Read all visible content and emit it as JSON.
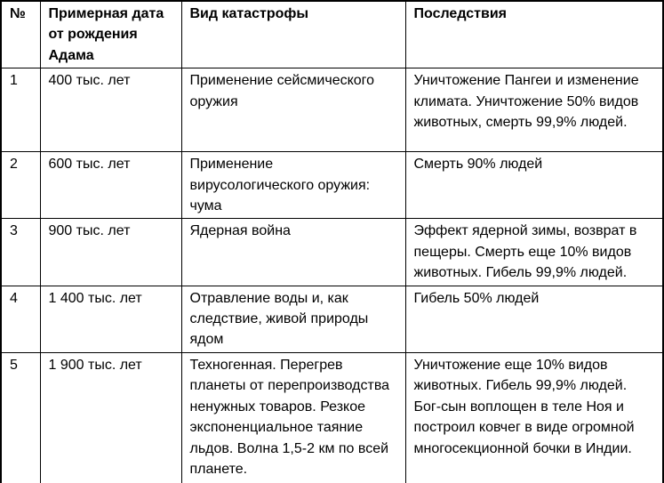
{
  "colors": {
    "border": "#000000",
    "text": "#000000",
    "background": "#ffffff"
  },
  "table": {
    "columns": [
      "№",
      "Примерная дата от рождения Адама",
      "Вид катастрофы",
      "Последствия"
    ],
    "rows": [
      {
        "num": "1",
        "date": "400 тыс. лет",
        "catastrophe": "Применение сейсмического оружия",
        "consequences": "Уничтожение Пангеи и изменение климата. Уничтожение 50% видов животных, смерть 99,9% людей."
      },
      {
        "num": "2",
        "date": "600 тыс. лет",
        "catastrophe": "Применение вирусологического оружия: чума",
        "consequences": "Смерть 90% людей"
      },
      {
        "num": "3",
        "date": "900 тыс. лет",
        "catastrophe": "Ядерная война",
        "consequences": "Эффект ядерной зимы, возврат в пещеры. Смерть еще 10% видов животных. Гибель 99,9% людей."
      },
      {
        "num": "4",
        "date": "1 400 тыс. лет",
        "catastrophe": "Отравление воды и, как следствие, живой природы ядом",
        "consequences": "Гибель 50% людей"
      },
      {
        "num": "5",
        "date": "1 900 тыс. лет",
        "catastrophe": "Техногенная. Перегрев планеты от перепроизводства ненужных товаров. Резкое экспоненциальное таяние льдов. Волна 1,5-2 км по всей планете.",
        "consequences": "Уничтожение еще 10% видов животных. Гибель 99,9% людей. Бог-сын воплощен в теле Ноя и построил ковчег в виде огромной многосекционной бочки в Индии."
      }
    ]
  }
}
